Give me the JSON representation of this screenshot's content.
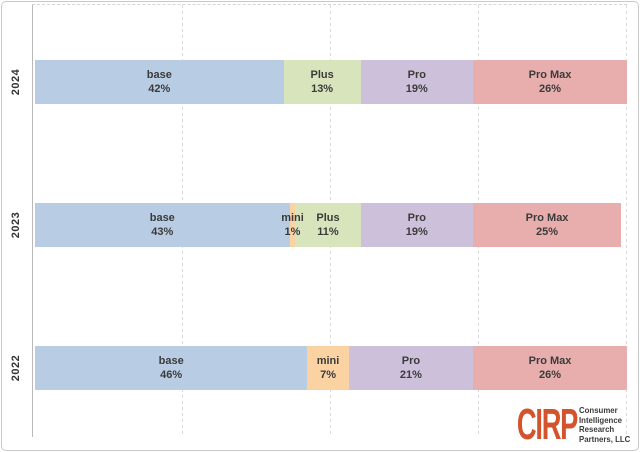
{
  "chart_data": {
    "type": "bar",
    "orientation": "horizontal-stacked",
    "unit": "%",
    "title": "",
    "xlabel": "",
    "ylabel": "",
    "xlim": [
      0,
      100
    ],
    "grid": true,
    "gridlines_pct": [
      25,
      50,
      75,
      100
    ],
    "categories": [
      "2024",
      "2023",
      "2022"
    ],
    "segment_order": [
      "base",
      "mini",
      "Plus",
      "Pro",
      "Pro Max"
    ],
    "colors": {
      "base": "#B8CCE4",
      "mini": "#FBD3A3",
      "Plus": "#D8E4BC",
      "Pro": "#CCC0DA",
      "Pro Max": "#E7AEAD"
    },
    "rows": [
      {
        "year": "2024",
        "segments": [
          {
            "label": "base",
            "value": 42,
            "value_text": "42%"
          },
          {
            "label": "Plus",
            "value": 13,
            "value_text": "13%"
          },
          {
            "label": "Pro",
            "value": 19,
            "value_text": "19%"
          },
          {
            "label": "Pro Max",
            "value": 26,
            "value_text": "26%"
          }
        ]
      },
      {
        "year": "2023",
        "segments": [
          {
            "label": "base",
            "value": 43,
            "value_text": "43%"
          },
          {
            "label": "mini",
            "value": 1,
            "value_text": "1%"
          },
          {
            "label": "Plus",
            "value": 11,
            "value_text": "11%"
          },
          {
            "label": "Pro",
            "value": 19,
            "value_text": "19%"
          },
          {
            "label": "Pro Max",
            "value": 25,
            "value_text": "25%"
          }
        ]
      },
      {
        "year": "2022",
        "segments": [
          {
            "label": "base",
            "value": 46,
            "value_text": "46%"
          },
          {
            "label": "mini",
            "value": 7,
            "value_text": "7%"
          },
          {
            "label": "Pro",
            "value": 21,
            "value_text": "21%"
          },
          {
            "label": "Pro Max",
            "value": 26,
            "value_text": "26%"
          }
        ]
      }
    ],
    "style_colors": {
      "gridline": "#D9D9D9",
      "axis_line": "#B9B9B9",
      "label_text": "#3B3B3B",
      "frame_border": "#C9C9C9"
    }
  },
  "logo": {
    "acronym": "CIRP",
    "color": "#D5532C",
    "lines": [
      "Consumer",
      "Intelligence",
      "Research",
      "Partners, LLC"
    ]
  }
}
